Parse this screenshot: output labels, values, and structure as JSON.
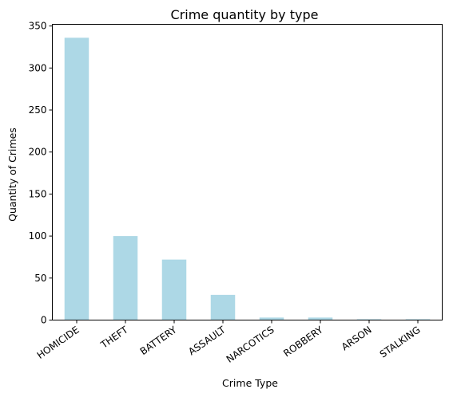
{
  "chart_data": {
    "type": "bar",
    "title": "Crime quantity by type",
    "xlabel": "Crime Type",
    "ylabel": "Quantity of Crimes",
    "categories": [
      "HOMICIDE",
      "THEFT",
      "BATTERY",
      "ASSAULT",
      "NARCOTICS",
      "ROBBERY",
      "ARSON",
      "STALKING"
    ],
    "values": [
      336,
      100,
      72,
      30,
      3,
      3,
      1,
      1
    ],
    "ylim": [
      0,
      352
    ],
    "yticks": [
      0,
      50,
      100,
      150,
      200,
      250,
      300,
      350
    ],
    "grid": false,
    "legend": "none",
    "bar_color": "#add8e6",
    "xtick_rotation_deg": 35
  }
}
